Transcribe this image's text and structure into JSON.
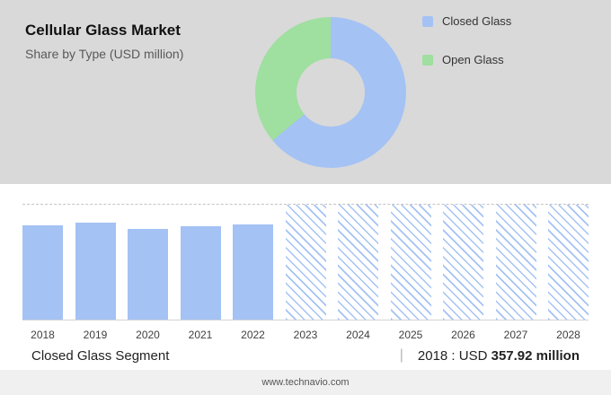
{
  "header": {
    "title": "Cellular Glass Market",
    "subtitle": "Share by Type (USD million)"
  },
  "legend": [
    {
      "label": "Closed Glass",
      "color": "#a4c2f4"
    },
    {
      "label": "Open Glass",
      "color": "#9fdf9f"
    }
  ],
  "chart_data": [
    {
      "type": "pie",
      "title": "Share by Type (USD million)",
      "labels": [
        "Closed Glass",
        "Open Glass"
      ],
      "values": [
        64,
        36
      ],
      "colors": [
        "#a4c2f4",
        "#9fdf9f"
      ],
      "donut": true,
      "note": "percent shares estimated from arc angles; no numeric labels shown"
    },
    {
      "type": "bar",
      "title": "Closed Glass Segment (USD million)",
      "categories": [
        "2018",
        "2019",
        "2020",
        "2021",
        "2022",
        "2023",
        "2024",
        "2025",
        "2026",
        "2027",
        "2028"
      ],
      "values_pct_of_plot_height": [
        82,
        84,
        79,
        81,
        83,
        100,
        100,
        100,
        100,
        100,
        100
      ],
      "forecast_start_index": 5,
      "known_points": {
        "2018": 357.92
      },
      "bar_color": "#a4c2f4",
      "ylabel": "",
      "xlabel": "",
      "grid": "dashed top gridline, solid baseline; 2023-2028 bars hatched (forecast)"
    }
  ],
  "footer": {
    "segment_label": "Closed Glass Segment",
    "divider": "|",
    "stat_prefix": "2018 : USD",
    "stat_value": "357.92 million",
    "website": "www.technavio.com"
  }
}
